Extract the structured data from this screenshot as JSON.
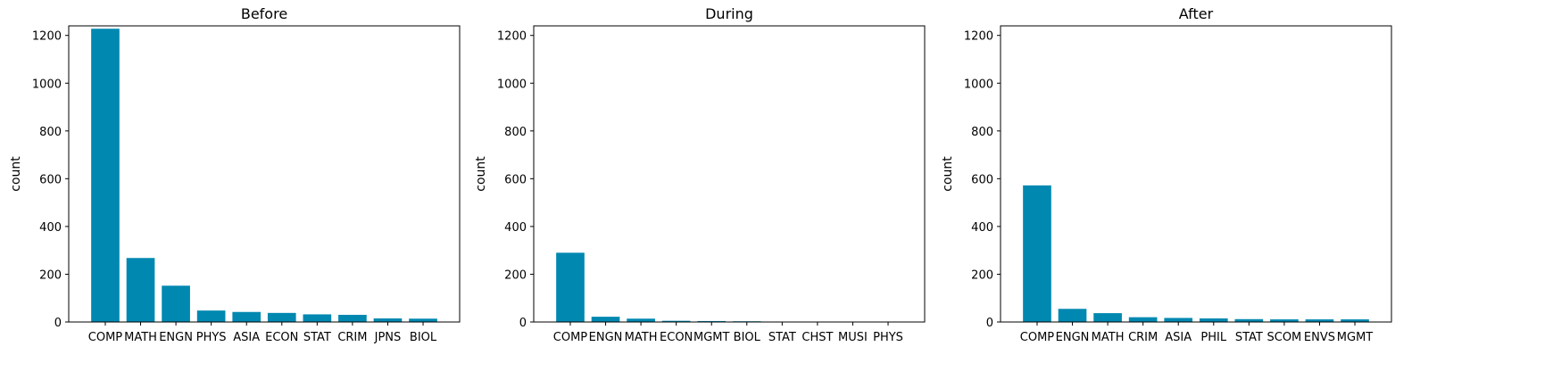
{
  "chart_data": [
    {
      "type": "bar",
      "title": "Before",
      "ylabel": "count",
      "ylim": [
        0,
        1240
      ],
      "yticks": [
        0,
        200,
        400,
        600,
        800,
        1000,
        1200
      ],
      "categories": [
        "COMP",
        "MATH",
        "ENGN",
        "PHYS",
        "ASIA",
        "ECON",
        "STAT",
        "CRIM",
        "JPNS",
        "BIOL"
      ],
      "values": [
        1228,
        268,
        152,
        48,
        42,
        38,
        32,
        30,
        15,
        14
      ]
    },
    {
      "type": "bar",
      "title": "During",
      "ylabel": "count",
      "ylim": [
        0,
        1240
      ],
      "yticks": [
        0,
        200,
        400,
        600,
        800,
        1000,
        1200
      ],
      "categories": [
        "COMP",
        "ENGN",
        "MATH",
        "ECON",
        "MGMT",
        "BIOL",
        "STAT",
        "CHST",
        "MUSI",
        "PHYS"
      ],
      "values": [
        290,
        22,
        14,
        5,
        4,
        3,
        1,
        1,
        1,
        1
      ]
    },
    {
      "type": "bar",
      "title": "After",
      "ylabel": "count",
      "ylim": [
        0,
        1240
      ],
      "yticks": [
        0,
        200,
        400,
        600,
        800,
        1000,
        1200
      ],
      "categories": [
        "COMP",
        "ENGN",
        "MATH",
        "CRIM",
        "ASIA",
        "PHIL",
        "STAT",
        "SCOM",
        "ENVS",
        "MGMT"
      ],
      "values": [
        572,
        55,
        37,
        20,
        17,
        15,
        12,
        11,
        11,
        11
      ]
    }
  ],
  "colors": {
    "bar": "#0088b0",
    "axis": "#000000",
    "background": "#ffffff"
  }
}
